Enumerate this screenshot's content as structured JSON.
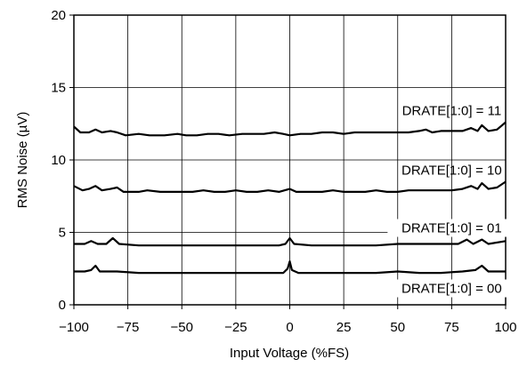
{
  "chart_data": {
    "type": "line",
    "xlabel": "Input Voltage (%FS)",
    "ylabel": "RMS Noise (µV)",
    "xlim": [
      -100,
      100
    ],
    "ylim": [
      0,
      20
    ],
    "x_ticks": [
      "−100",
      "−75",
      "−50",
      "−25",
      "0",
      "25",
      "50",
      "75",
      "100"
    ],
    "y_ticks": [
      "0",
      "5",
      "10",
      "15",
      "20"
    ],
    "grid": true,
    "series": [
      {
        "name": "DRATE[1:0] = 11",
        "points": [
          [
            -100,
            12.3
          ],
          [
            -97,
            11.9
          ],
          [
            -93,
            11.9
          ],
          [
            -90,
            12.1
          ],
          [
            -87,
            11.9
          ],
          [
            -83,
            12.0
          ],
          [
            -80,
            11.9
          ],
          [
            -76,
            11.7
          ],
          [
            -70,
            11.8
          ],
          [
            -65,
            11.7
          ],
          [
            -58,
            11.7
          ],
          [
            -52,
            11.8
          ],
          [
            -48,
            11.7
          ],
          [
            -43,
            11.7
          ],
          [
            -38,
            11.8
          ],
          [
            -33,
            11.8
          ],
          [
            -28,
            11.7
          ],
          [
            -22,
            11.8
          ],
          [
            -17,
            11.8
          ],
          [
            -12,
            11.8
          ],
          [
            -7,
            11.9
          ],
          [
            -3,
            11.8
          ],
          [
            0,
            11.7
          ],
          [
            5,
            11.8
          ],
          [
            10,
            11.8
          ],
          [
            15,
            11.9
          ],
          [
            20,
            11.9
          ],
          [
            25,
            11.8
          ],
          [
            30,
            11.9
          ],
          [
            35,
            11.9
          ],
          [
            40,
            11.9
          ],
          [
            45,
            11.9
          ],
          [
            50,
            11.9
          ],
          [
            55,
            11.9
          ],
          [
            60,
            12.0
          ],
          [
            63,
            12.1
          ],
          [
            66,
            11.9
          ],
          [
            70,
            12.0
          ],
          [
            76,
            12.0
          ],
          [
            80,
            12.0
          ],
          [
            84,
            12.2
          ],
          [
            87,
            12.0
          ],
          [
            89,
            12.4
          ],
          [
            92,
            12.0
          ],
          [
            96,
            12.1
          ],
          [
            100,
            12.6
          ]
        ]
      },
      {
        "name": "DRATE[1:0] = 10",
        "points": [
          [
            -100,
            8.2
          ],
          [
            -96,
            7.9
          ],
          [
            -93,
            8.0
          ],
          [
            -90,
            8.2
          ],
          [
            -87,
            7.9
          ],
          [
            -83,
            8.0
          ],
          [
            -80,
            8.1
          ],
          [
            -77,
            7.8
          ],
          [
            -70,
            7.8
          ],
          [
            -66,
            7.9
          ],
          [
            -60,
            7.8
          ],
          [
            -55,
            7.8
          ],
          [
            -50,
            7.8
          ],
          [
            -45,
            7.8
          ],
          [
            -40,
            7.9
          ],
          [
            -35,
            7.8
          ],
          [
            -30,
            7.8
          ],
          [
            -25,
            7.9
          ],
          [
            -20,
            7.8
          ],
          [
            -15,
            7.8
          ],
          [
            -10,
            7.9
          ],
          [
            -5,
            7.8
          ],
          [
            0,
            8.0
          ],
          [
            3,
            7.8
          ],
          [
            10,
            7.8
          ],
          [
            15,
            7.8
          ],
          [
            20,
            7.9
          ],
          [
            25,
            7.8
          ],
          [
            30,
            7.8
          ],
          [
            35,
            7.8
          ],
          [
            40,
            7.9
          ],
          [
            45,
            7.8
          ],
          [
            50,
            7.8
          ],
          [
            55,
            7.9
          ],
          [
            60,
            7.9
          ],
          [
            65,
            7.9
          ],
          [
            70,
            7.9
          ],
          [
            75,
            7.9
          ],
          [
            80,
            8.0
          ],
          [
            84,
            8.2
          ],
          [
            87,
            8.0
          ],
          [
            89,
            8.4
          ],
          [
            92,
            8.0
          ],
          [
            96,
            8.1
          ],
          [
            100,
            8.5
          ]
        ]
      },
      {
        "name": "DRATE[1:0] = 01",
        "points": [
          [
            -100,
            4.2
          ],
          [
            -95,
            4.2
          ],
          [
            -92,
            4.4
          ],
          [
            -89,
            4.2
          ],
          [
            -85,
            4.2
          ],
          [
            -82,
            4.6
          ],
          [
            -79,
            4.2
          ],
          [
            -70,
            4.1
          ],
          [
            -60,
            4.1
          ],
          [
            -50,
            4.1
          ],
          [
            -40,
            4.1
          ],
          [
            -30,
            4.1
          ],
          [
            -20,
            4.1
          ],
          [
            -10,
            4.1
          ],
          [
            -5,
            4.1
          ],
          [
            -2,
            4.2
          ],
          [
            0,
            4.6
          ],
          [
            2,
            4.2
          ],
          [
            10,
            4.1
          ],
          [
            20,
            4.1
          ],
          [
            30,
            4.1
          ],
          [
            40,
            4.1
          ],
          [
            50,
            4.2
          ],
          [
            60,
            4.2
          ],
          [
            70,
            4.2
          ],
          [
            78,
            4.2
          ],
          [
            82,
            4.5
          ],
          [
            85,
            4.2
          ],
          [
            89,
            4.5
          ],
          [
            92,
            4.2
          ],
          [
            100,
            4.4
          ]
        ]
      },
      {
        "name": "DRATE[1:0] = 00",
        "points": [
          [
            -100,
            2.3
          ],
          [
            -95,
            2.3
          ],
          [
            -92,
            2.4
          ],
          [
            -90,
            2.7
          ],
          [
            -88,
            2.3
          ],
          [
            -80,
            2.3
          ],
          [
            -70,
            2.2
          ],
          [
            -60,
            2.2
          ],
          [
            -50,
            2.2
          ],
          [
            -40,
            2.2
          ],
          [
            -30,
            2.2
          ],
          [
            -20,
            2.2
          ],
          [
            -10,
            2.2
          ],
          [
            -3,
            2.2
          ],
          [
            -1,
            2.5
          ],
          [
            0,
            3.0
          ],
          [
            1,
            2.4
          ],
          [
            4,
            2.2
          ],
          [
            10,
            2.2
          ],
          [
            20,
            2.2
          ],
          [
            30,
            2.2
          ],
          [
            40,
            2.2
          ],
          [
            50,
            2.3
          ],
          [
            60,
            2.2
          ],
          [
            70,
            2.2
          ],
          [
            80,
            2.3
          ],
          [
            86,
            2.4
          ],
          [
            89,
            2.7
          ],
          [
            92,
            2.3
          ],
          [
            100,
            2.3
          ]
        ]
      }
    ]
  }
}
